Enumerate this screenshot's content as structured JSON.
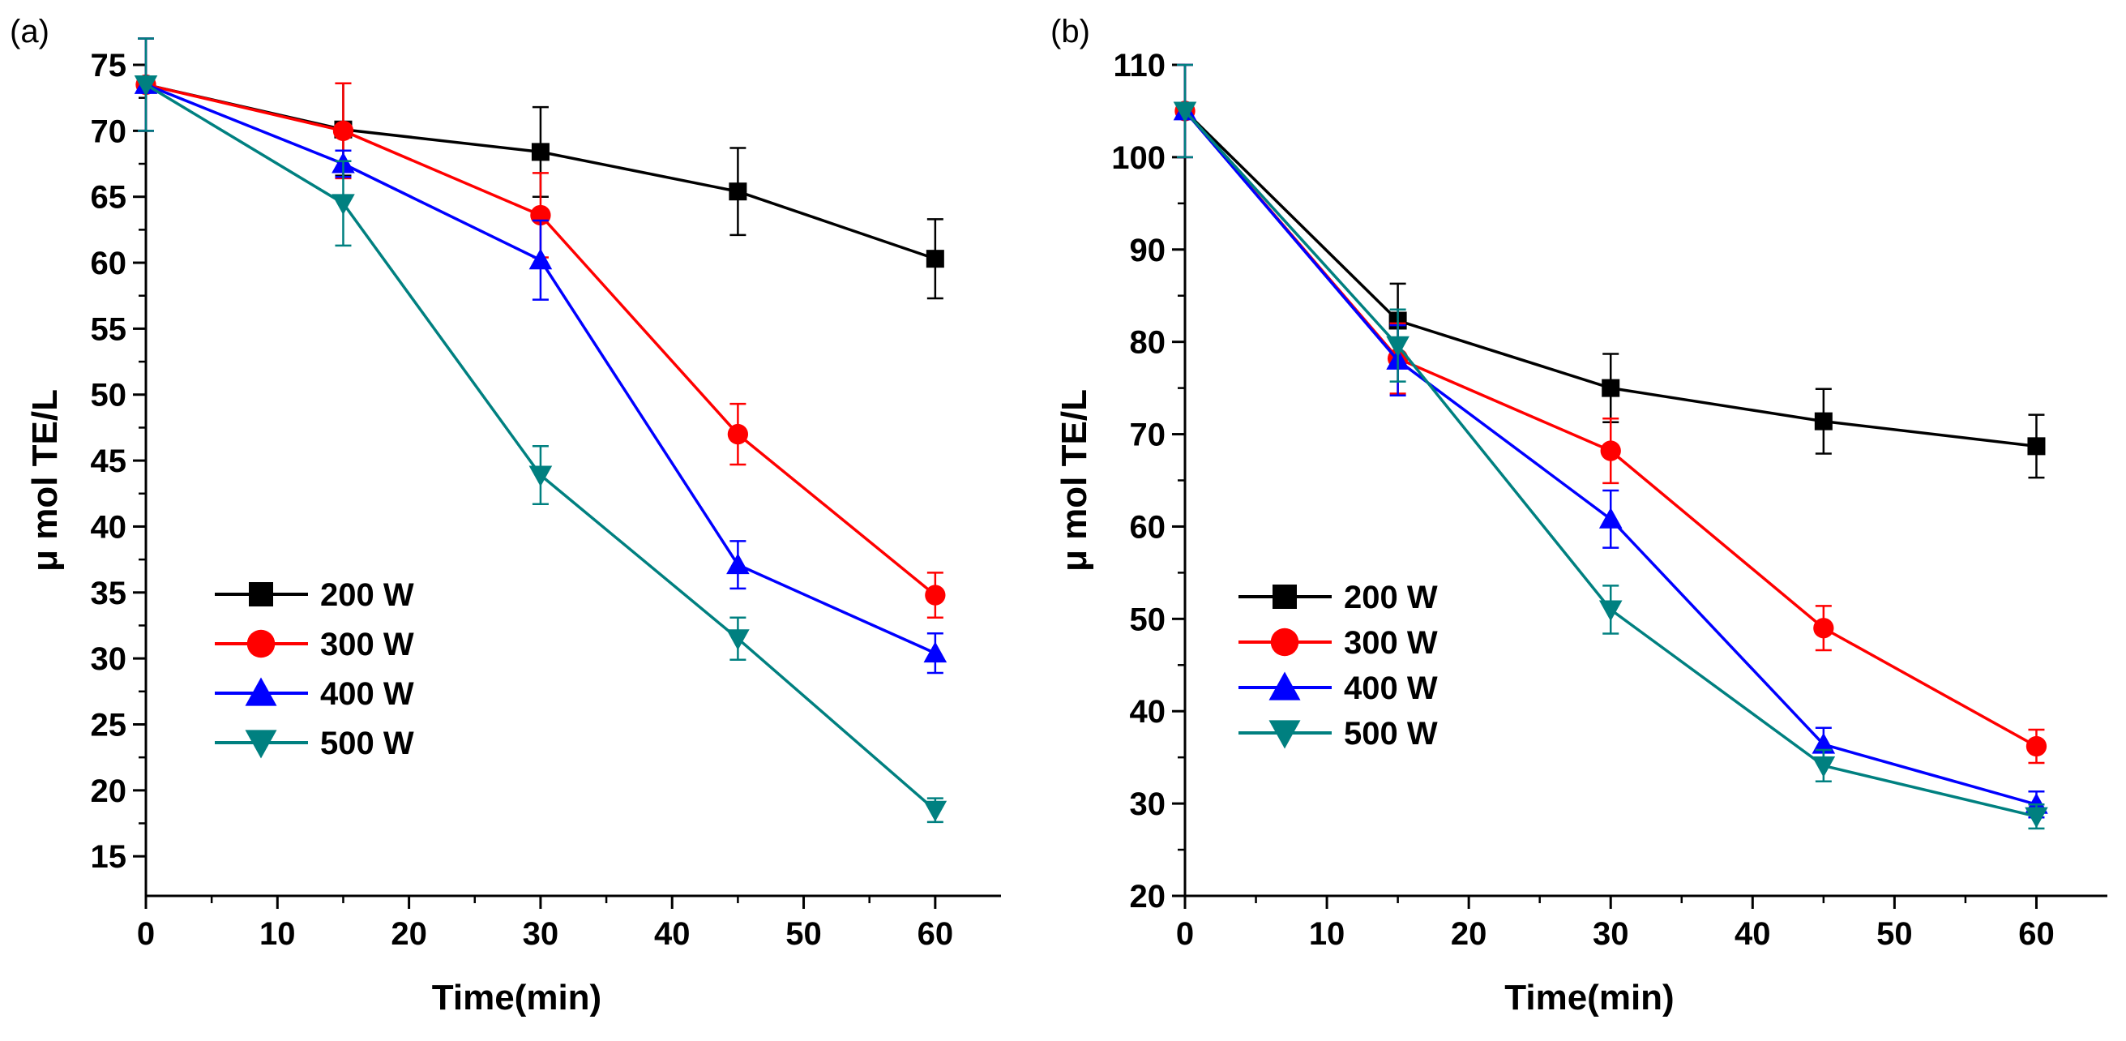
{
  "chart_data": [
    {
      "type": "line",
      "panel_label": "(a)",
      "xlabel": "Time(min)",
      "ylabel": "μ mol TE/L",
      "xlim": [
        0,
        65
      ],
      "ylim": [
        12,
        75
      ],
      "xticks": [
        0,
        10,
        20,
        30,
        40,
        50,
        60
      ],
      "yticks": [
        15,
        20,
        25,
        30,
        35,
        40,
        45,
        50,
        55,
        60,
        65,
        70,
        75
      ],
      "x": [
        0,
        15,
        30,
        45,
        60
      ],
      "legend_position": "lower-left",
      "series": [
        {
          "name": "200 W",
          "color": "#000000",
          "marker": "square",
          "values": [
            73.5,
            70.1,
            68.4,
            65.4,
            60.3
          ],
          "errors": [
            3.5,
            3.5,
            3.4,
            3.3,
            3.0
          ]
        },
        {
          "name": "300 W",
          "color": "#ff0000",
          "marker": "circle",
          "values": [
            73.5,
            70.0,
            63.6,
            47.0,
            34.8
          ],
          "errors": [
            3.5,
            3.6,
            3.2,
            2.3,
            1.7
          ]
        },
        {
          "name": "400 W",
          "color": "#0000ff",
          "marker": "triangle-up",
          "values": [
            73.5,
            67.5,
            60.2,
            37.1,
            30.4
          ],
          "errors": [
            3.5,
            1.0,
            3.0,
            1.8,
            1.5
          ]
        },
        {
          "name": "500 W",
          "color": "#008080",
          "marker": "triangle-down",
          "values": [
            73.5,
            64.5,
            43.9,
            31.5,
            18.5
          ],
          "errors": [
            3.5,
            3.2,
            2.2,
            1.6,
            0.9
          ]
        }
      ]
    },
    {
      "type": "line",
      "panel_label": "(b)",
      "xlabel": "Time(min)",
      "ylabel": "μ mol TE/L",
      "xlim": [
        0,
        65
      ],
      "ylim": [
        20,
        110
      ],
      "xticks": [
        0,
        10,
        20,
        30,
        40,
        50,
        60
      ],
      "yticks": [
        20,
        30,
        40,
        50,
        60,
        70,
        80,
        90,
        100,
        110
      ],
      "x": [
        0,
        15,
        30,
        45,
        60
      ],
      "legend_position": "lower-left",
      "series": [
        {
          "name": "200 W",
          "color": "#000000",
          "marker": "square",
          "values": [
            105,
            82.3,
            75.0,
            71.4,
            68.7
          ],
          "errors": [
            5.0,
            4.0,
            3.7,
            3.5,
            3.4
          ]
        },
        {
          "name": "300 W",
          "color": "#ff0000",
          "marker": "circle",
          "values": [
            105,
            78.2,
            68.2,
            49.0,
            36.2
          ],
          "errors": [
            5.0,
            3.8,
            3.5,
            2.4,
            1.8
          ]
        },
        {
          "name": "400 W",
          "color": "#0000ff",
          "marker": "triangle-up",
          "values": [
            105,
            78.0,
            60.8,
            36.4,
            29.9
          ],
          "errors": [
            5.0,
            3.8,
            3.1,
            1.8,
            1.4
          ]
        },
        {
          "name": "500 W",
          "color": "#008080",
          "marker": "triangle-down",
          "values": [
            105,
            79.6,
            51.0,
            34.1,
            28.6
          ],
          "errors": [
            5.0,
            3.9,
            2.6,
            1.7,
            1.3
          ]
        }
      ]
    }
  ]
}
